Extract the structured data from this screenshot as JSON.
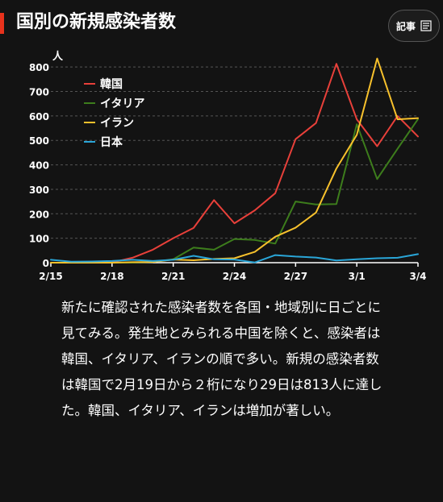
{
  "header": {
    "title": "国別の新規感染者数",
    "article_button_label": "記事"
  },
  "colors": {
    "background": "#131313",
    "accent": "#e8321c",
    "korea": "#e8403a",
    "italy": "#3d7d1c",
    "iran": "#f7c12c",
    "japan": "#2aa6d8",
    "grid": "#555555"
  },
  "chart_data": {
    "type": "line",
    "ylabel": "人",
    "ylim": [
      0,
      850
    ],
    "yticks": [
      0,
      100,
      200,
      300,
      400,
      500,
      600,
      700,
      800
    ],
    "x": [
      "2/15",
      "2/16",
      "2/17",
      "2/18",
      "2/19",
      "2/20",
      "2/21",
      "2/22",
      "2/23",
      "2/24",
      "2/25",
      "2/26",
      "2/27",
      "2/28",
      "2/29",
      "3/1",
      "3/2",
      "3/3",
      "3/4"
    ],
    "xtick_labels": [
      "2/15",
      "2/18",
      "2/21",
      "2/24",
      "2/27",
      "3/1",
      "3/4"
    ],
    "grid": true,
    "legend_position": "top-left",
    "series": [
      {
        "name": "韓国",
        "color": "#e8403a",
        "values": [
          0,
          0,
          0,
          1,
          20,
          53,
          100,
          142,
          256,
          161,
          214,
          284,
          505,
          571,
          813,
          586,
          476,
          600,
          516
        ]
      },
      {
        "name": "イタリア",
        "color": "#3d7d1c",
        "values": [
          0,
          0,
          0,
          0,
          0,
          3,
          14,
          62,
          53,
          97,
          93,
          78,
          250,
          238,
          240,
          566,
          342,
          466,
          587
        ]
      },
      {
        "name": "イラン",
        "color": "#f7c12c",
        "values": [
          0,
          0,
          0,
          0,
          2,
          3,
          13,
          10,
          15,
          18,
          44,
          106,
          143,
          205,
          385,
          523,
          835,
          586,
          591
        ]
      },
      {
        "name": "日本",
        "color": "#2aa6d8",
        "values": [
          12,
          4,
          5,
          7,
          12,
          7,
          12,
          28,
          14,
          13,
          1,
          31,
          25,
          21,
          9,
          14,
          18,
          20,
          35
        ]
      }
    ]
  },
  "description": "新たに確認された感染者数を各国・地域別に日ごとに見てみる。発生地とみられる中国を除くと、感染者は韓国、イタリア、イランの順で多い。新規の感染者数は韓国で2月19日から２桁になり29日は813人に達した。韓国、イタリア、イランは増加が著しい。"
}
